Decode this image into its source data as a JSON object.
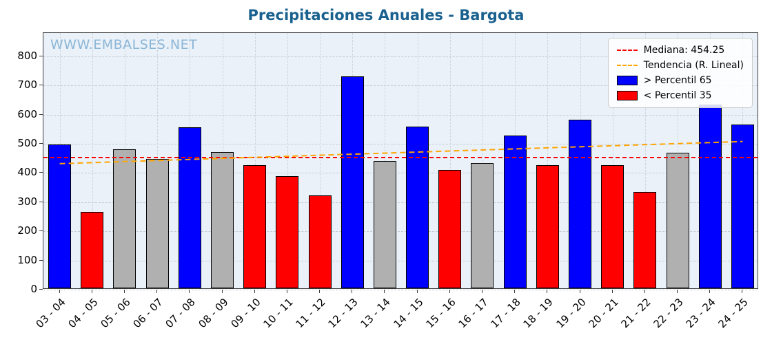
{
  "watermark": "WWW.EMBALSES.NET",
  "chart_data": {
    "type": "bar",
    "title": "Precipitaciones Anuales - Bargota",
    "categories": [
      "03 - 04",
      "04 - 05",
      "05 - 06",
      "06 - 07",
      "07 - 08",
      "08 - 09",
      "09 - 10",
      "10 - 11",
      "11 - 12",
      "12 - 13",
      "13 - 14",
      "14 - 15",
      "15 - 16",
      "16 - 17",
      "17 - 18",
      "18 - 19",
      "19 - 20",
      "20 - 21",
      "21 - 22",
      "22 - 23",
      "23 - 24",
      "24 - 25"
    ],
    "values": [
      493,
      262,
      477,
      443,
      551,
      467,
      422,
      384,
      318,
      727,
      437,
      555,
      405,
      430,
      524,
      423,
      577,
      422,
      330,
      464,
      630,
      561
    ],
    "bar_classes": [
      "above",
      "below",
      "mid",
      "mid",
      "above",
      "mid",
      "below",
      "below",
      "below",
      "above",
      "mid",
      "above",
      "below",
      "mid",
      "above",
      "below",
      "above",
      "below",
      "below",
      "mid",
      "above",
      "above"
    ],
    "colors": {
      "above": "#0000ff",
      "below": "#ff0000",
      "mid": "#b0b0b0",
      "edge": "#000000",
      "median": "#ff0000",
      "trend": "#ffa500",
      "title": "#1a618f",
      "watermark": "#8cb6d6",
      "plot_bg": "#eaf1f8"
    },
    "median": 454.25,
    "trend": {
      "start": 432,
      "end": 508
    },
    "ylim": [
      0,
      880
    ],
    "yticks": [
      0,
      100,
      200,
      300,
      400,
      500,
      600,
      700,
      800
    ],
    "grid": true,
    "legend": {
      "position": "top-right",
      "items": [
        {
          "label": "Mediana: 454.25",
          "type": "dashed-line",
          "color": "#ff0000"
        },
        {
          "label": "Tendencia (R. Lineal)",
          "type": "dashed-line",
          "color": "#ffa500"
        },
        {
          "label": "> Percentil 65",
          "type": "box",
          "color": "#0000ff"
        },
        {
          "label": "< Percentil 35",
          "type": "box",
          "color": "#ff0000"
        }
      ]
    }
  }
}
